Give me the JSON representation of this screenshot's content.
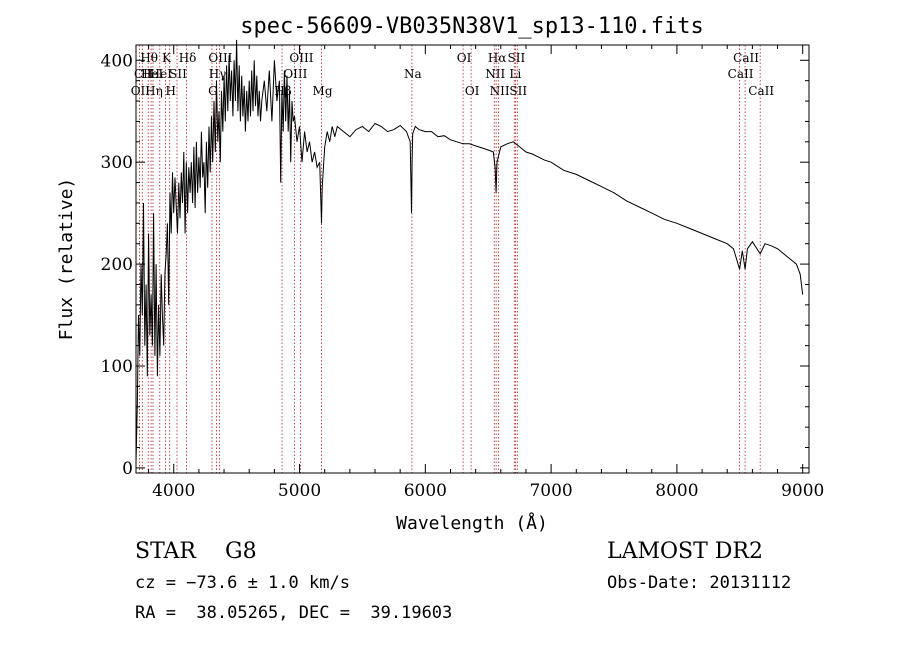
{
  "chart_data": {
    "type": "line",
    "title": "spec-56609-VB035N38V1_sp13-110.fits",
    "xlabel": "Wavelength (Å)",
    "ylabel": "Flux (relative)",
    "xlim": [
      3700,
      9050
    ],
    "ylim": [
      -5,
      415
    ],
    "xticks": [
      4000,
      5000,
      6000,
      7000,
      8000,
      9000
    ],
    "yticks": [
      0,
      100,
      200,
      300,
      400
    ],
    "grid": false,
    "series": [
      {
        "x": [
          3700,
          3710,
          3720,
          3730,
          3740,
          3750,
          3760,
          3770,
          3780,
          3790,
          3800,
          3810,
          3820,
          3830,
          3840,
          3850,
          3860,
          3870,
          3880,
          3890,
          3900,
          3910,
          3920,
          3930,
          3940,
          3950,
          3960,
          3970,
          3980,
          3990,
          4000,
          4010,
          4020,
          4030,
          4040,
          4050,
          4060,
          4070,
          4080,
          4090,
          4100,
          4110,
          4120,
          4130,
          4140,
          4150,
          4160,
          4170,
          4180,
          4190,
          4200,
          4210,
          4220,
          4230,
          4240,
          4250,
          4260,
          4270,
          4280,
          4290,
          4300,
          4310,
          4320,
          4330,
          4340,
          4350,
          4360,
          4370,
          4380,
          4390,
          4400,
          4410,
          4420,
          4430,
          4440,
          4450,
          4460,
          4470,
          4480,
          4490,
          4500,
          4510,
          4520,
          4530,
          4540,
          4550,
          4560,
          4570,
          4580,
          4590,
          4600,
          4610,
          4620,
          4630,
          4640,
          4650,
          4660,
          4670,
          4680,
          4690,
          4700,
          4720,
          4740,
          4760,
          4780,
          4800,
          4820,
          4840,
          4850,
          4860,
          4870,
          4880,
          4890,
          4900,
          4910,
          4920,
          4930,
          4940,
          4950,
          4960,
          4980,
          5000,
          5020,
          5040,
          5060,
          5080,
          5100,
          5120,
          5140,
          5160,
          5170,
          5175,
          5180,
          5200,
          5220,
          5240,
          5260,
          5280,
          5300,
          5350,
          5400,
          5450,
          5500,
          5550,
          5600,
          5650,
          5700,
          5750,
          5800,
          5850,
          5880,
          5890,
          5895,
          5900,
          5920,
          5950,
          6000,
          6050,
          6100,
          6150,
          6200,
          6250,
          6300,
          6350,
          6400,
          6450,
          6500,
          6540,
          6555,
          6563,
          6570,
          6600,
          6650,
          6700,
          6750,
          6800,
          6850,
          6900,
          6950,
          7000,
          7100,
          7200,
          7300,
          7400,
          7500,
          7600,
          7700,
          7800,
          7900,
          8000,
          8100,
          8200,
          8300,
          8400,
          8450,
          8498,
          8520,
          8542,
          8560,
          8600,
          8662,
          8700,
          8750,
          8800,
          8850,
          8900,
          8950,
          8980,
          9000
        ],
        "y": [
          5,
          60,
          150,
          110,
          200,
          150,
          260,
          120,
          180,
          90,
          230,
          130,
          170,
          120,
          250,
          110,
          200,
          90,
          160,
          110,
          190,
          150,
          120,
          190,
          210,
          240,
          160,
          270,
          230,
          290,
          250,
          285,
          255,
          230,
          280,
          245,
          290,
          260,
          310,
          230,
          300,
          250,
          295,
          270,
          300,
          260,
          315,
          255,
          320,
          270,
          305,
          275,
          330,
          285,
          300,
          250,
          320,
          275,
          335,
          290,
          345,
          300,
          360,
          310,
          380,
          320,
          350,
          300,
          370,
          330,
          385,
          340,
          395,
          350,
          405,
          360,
          390,
          345,
          400,
          360,
          420,
          350,
          395,
          340,
          385,
          345,
          375,
          330,
          370,
          340,
          380,
          345,
          390,
          350,
          400,
          355,
          385,
          345,
          370,
          340,
          360,
          380,
          350,
          390,
          340,
          400,
          360,
          380,
          280,
          370,
          330,
          390,
          340,
          385,
          330,
          370,
          300,
          360,
          340,
          345,
          320,
          335,
          300,
          330,
          310,
          320,
          300,
          310,
          295,
          300,
          260,
          240,
          275,
          315,
          330,
          320,
          335,
          325,
          335,
          330,
          325,
          332,
          335,
          330,
          338,
          335,
          330,
          332,
          336,
          330,
          320,
          250,
          300,
          328,
          335,
          332,
          330,
          330,
          325,
          326,
          322,
          320,
          318,
          318,
          316,
          314,
          312,
          310,
          295,
          270,
          300,
          315,
          318,
          320,
          315,
          310,
          308,
          305,
          302,
          300,
          292,
          288,
          282,
          276,
          270,
          262,
          256,
          250,
          244,
          240,
          235,
          230,
          225,
          220,
          215,
          195,
          213,
          195,
          215,
          222,
          210,
          220,
          218,
          215,
          210,
          205,
          200,
          190,
          170
        ]
      }
    ],
    "lines": [
      {
        "wave": 3727,
        "label": "OII",
        "row": 3
      },
      {
        "wave": 3750,
        "label": "CII",
        "row": 2
      },
      {
        "wave": 3797,
        "label": "Hθ",
        "row": 1
      },
      {
        "wave": 3820,
        "label": "HeI",
        "row": 2
      },
      {
        "wave": 3835,
        "label": "Hη",
        "row": 3
      },
      {
        "wave": 3889,
        "label": "HeI",
        "row": 2
      },
      {
        "wave": 3934,
        "label": "K",
        "row": 1
      },
      {
        "wave": 3968,
        "label": "H",
        "row": 3
      },
      {
        "wave": 4026,
        "label": "SII",
        "row": 2
      },
      {
        "wave": 4102,
        "label": "Hδ",
        "row": 1
      },
      {
        "wave": 4304,
        "label": "G",
        "row": 3
      },
      {
        "wave": 4340,
        "label": "Hγ",
        "row": 2
      },
      {
        "wave": 4363,
        "label": "OIII",
        "row": 1
      },
      {
        "wave": 4861,
        "label": "Hβ",
        "row": 3
      },
      {
        "wave": 4959,
        "label": "OIII",
        "row": 2
      },
      {
        "wave": 5007,
        "label": "OIII",
        "row": 1
      },
      {
        "wave": 5175,
        "label": "Mg",
        "row": 3
      },
      {
        "wave": 5893,
        "label": "Na",
        "row": 2
      },
      {
        "wave": 6300,
        "label": "OI",
        "row": 1
      },
      {
        "wave": 6364,
        "label": "OI",
        "row": 3
      },
      {
        "wave": 6548,
        "label": "NII",
        "row": 2
      },
      {
        "wave": 6563,
        "label": "Hα",
        "row": 1
      },
      {
        "wave": 6583,
        "label": "NII",
        "row": 3
      },
      {
        "wave": 6707,
        "label": "Li",
        "row": 2
      },
      {
        "wave": 6716,
        "label": "SII",
        "row": 1
      },
      {
        "wave": 6731,
        "label": "SII",
        "row": 3
      },
      {
        "wave": 8498,
        "label": "CaII",
        "row": 2
      },
      {
        "wave": 8542,
        "label": "CaII",
        "row": 1
      },
      {
        "wave": 8662,
        "label": "CaII",
        "row": 3
      }
    ]
  },
  "info": {
    "class_label": "STAR",
    "subclass": "G8",
    "survey": "LAMOST DR2",
    "cz": "cz = −73.6 ± 1.0 km/s",
    "obs_date": "Obs-Date: 20131112",
    "radec": "RA =  38.05265, DEC =  39.19603"
  },
  "colors": {
    "spectrum": "#000000",
    "line_marker": "#b22222",
    "axes": "#000000"
  }
}
